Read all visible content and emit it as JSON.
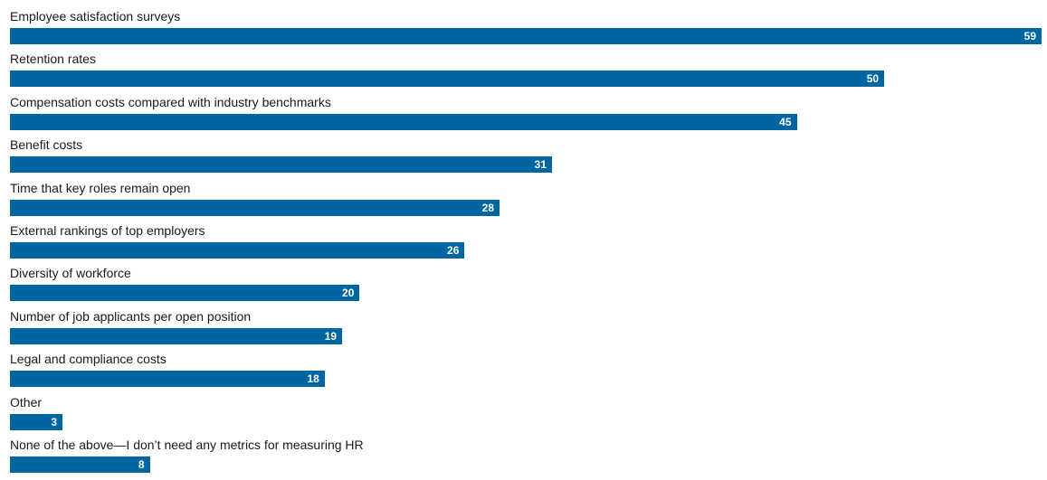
{
  "chart_data": {
    "type": "bar",
    "orientation": "horizontal",
    "categories": [
      "Employee satisfaction surveys",
      "Retention rates",
      "Compensation costs compared with industry benchmarks",
      "Benefit costs",
      "Time that key roles remain open",
      "External rankings of top employers",
      "Diversity of workforce",
      "Number of job applicants per open position",
      "Legal and compliance costs",
      "Other",
      "None of the above—I don’t need any metrics for measuring HR"
    ],
    "values": [
      59,
      50,
      45,
      31,
      28,
      26,
      20,
      19,
      18,
      3,
      8
    ],
    "xlim": [
      0,
      59
    ],
    "grid": false,
    "legend": "none",
    "bar_color": "#0066a1",
    "value_label_color": "#ffffff"
  }
}
